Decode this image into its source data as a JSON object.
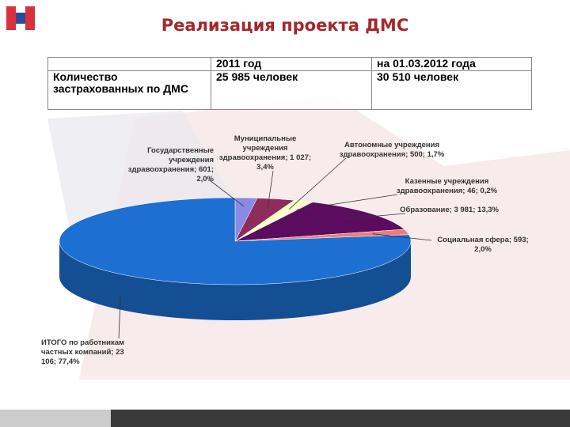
{
  "title": "Реализация проекта ДМС",
  "table": {
    "header": [
      "",
      "2011 год",
      "на 01.03.2012 года"
    ],
    "rows": [
      [
        "Количество застрахованных по ДМС",
        "25 985 человек",
        "30 510 человек"
      ]
    ]
  },
  "chart_data": {
    "type": "pie",
    "values": [
      601,
      1027,
      500,
      46,
      3981,
      593,
      23106
    ],
    "value_labels": [
      "Государственные учреждения здравоохранения; 601; 2,0%",
      "Муниципальные учреждения здравоохранения; 1 027; 3,4%",
      "Автономные учреждения здравоохранения; 500; 1,7%",
      "Казенные учреждения здравоохранения; 46; 0,2%",
      "Образование; 3 981; 13,3%",
      "Социальная сфера; 593; 2,0%",
      "ИТОГО по работникам частных компаний; 23 106; 77,4%"
    ],
    "colors": [
      "#8a8ae6",
      "#8e2c5c",
      "#ffffc8",
      "#7fc6c6",
      "#5c0c5e",
      "#f47a7a",
      "#1d6fd2"
    ]
  }
}
